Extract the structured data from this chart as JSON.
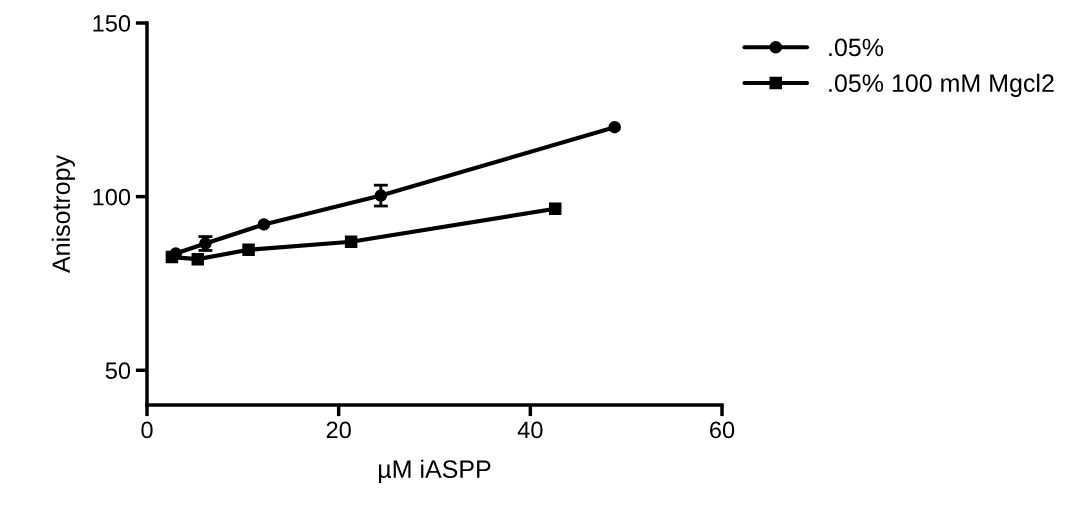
{
  "chart_data": {
    "type": "line",
    "xlabel": "µM iASPP",
    "ylabel": "Anisotropy",
    "xlim": [
      0,
      60
    ],
    "xticks": [
      0,
      20,
      40,
      60
    ],
    "ylim": [
      40,
      150
    ],
    "yticks": [
      50,
      100,
      150
    ],
    "grid": false,
    "legend": "top right",
    "series": [
      {
        "name": ".05%",
        "color": "#000000",
        "marker": "circle",
        "x": [
          3,
          6.1,
          12.2,
          24.4,
          48.8
        ],
        "values": [
          83.6,
          86.5,
          92,
          100.3,
          120
        ],
        "errors": [
          null,
          2,
          null,
          3,
          null
        ]
      },
      {
        "name": ".05% 100 mM Mgcl2",
        "color": "#000000",
        "marker": "square",
        "x": [
          2.6,
          5.3,
          10.6,
          21.3,
          42.6
        ],
        "values": [
          82.6,
          82,
          84.7,
          87,
          96.5
        ]
      }
    ]
  }
}
